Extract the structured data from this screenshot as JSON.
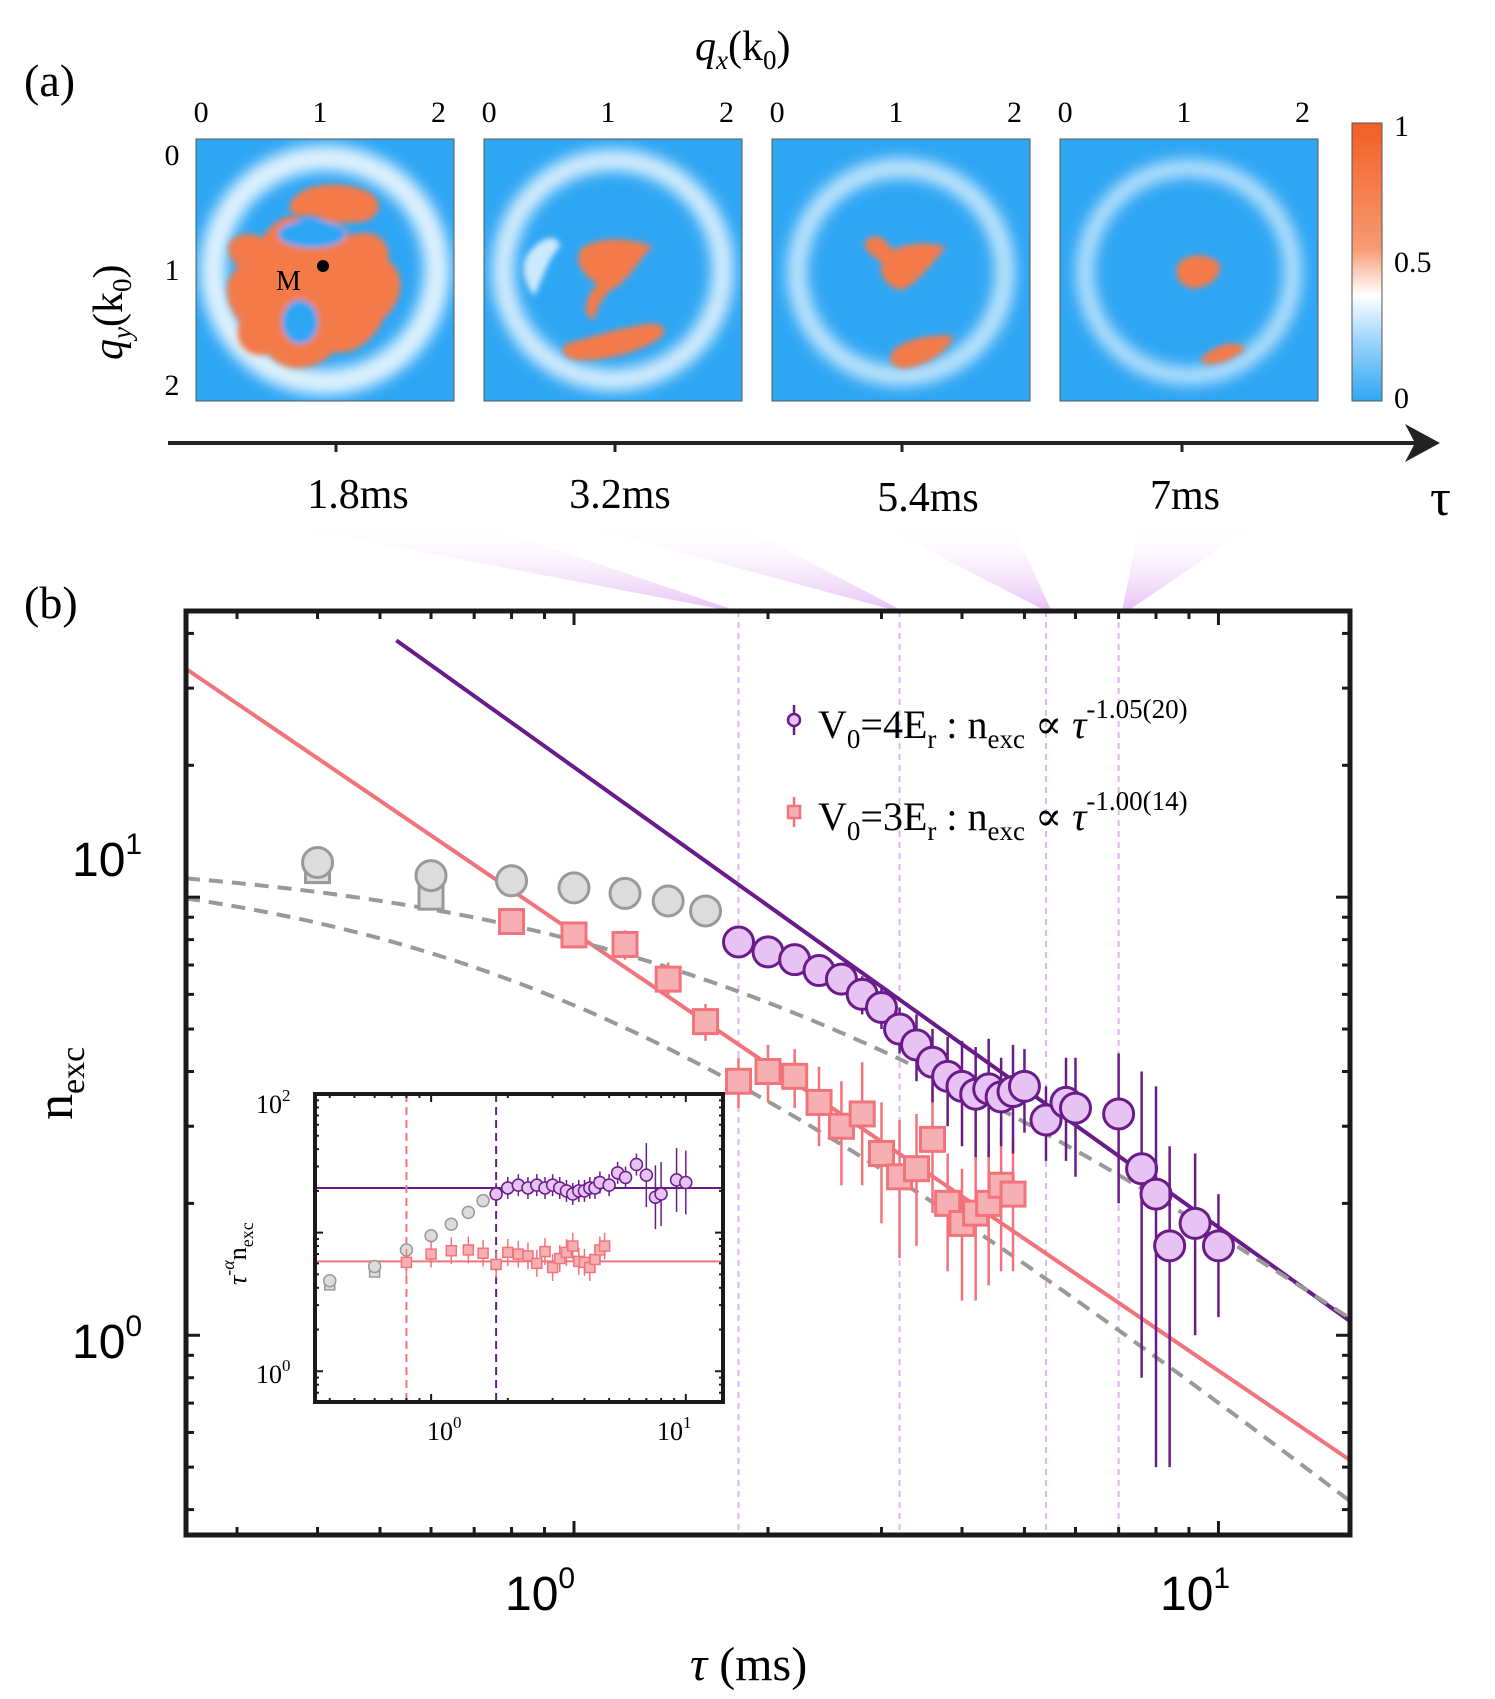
{
  "colors": {
    "purple": "#6a1b8a",
    "purple_fill": "#e6c3f2",
    "salmon": "#f2737a",
    "salmon_fill": "#f6b0b3",
    "gray": "#999999",
    "gray_fill": "#dcdcdc",
    "map_blue": "#2fa6f4",
    "map_orange": "#f47a4a",
    "guide": "#e3b6f0",
    "callout": "#ecc5f5"
  },
  "panel_a": {
    "label": "(a)",
    "x_axis_title_main": "q",
    "x_axis_title_sub": "x",
    "x_axis_title_rest": "(k",
    "x_axis_title_k_sub": "0",
    "x_axis_title_close": ")",
    "y_axis_title_main": "q",
    "y_axis_title_sub": "y",
    "y_axis_title_rest": "(k",
    "y_axis_title_k_sub": "0",
    "y_axis_title_close": ")",
    "x_ticks": [
      "0",
      "1",
      "2"
    ],
    "y_ticks": [
      "0",
      "1",
      "2"
    ],
    "marker_label": "M",
    "colorbar_ticks": [
      "1",
      "0.5",
      "0"
    ],
    "time_axis_symbol": "τ",
    "times": [
      "1.8ms",
      "3.2ms",
      "5.4ms",
      "7ms"
    ],
    "time_values_ms": [
      1.8,
      3.2,
      5.4,
      7.0
    ]
  },
  "chart_data": {
    "label": "(b)",
    "type": "scatter",
    "xscale": "log",
    "yscale": "log",
    "xlim": [
      0.25,
      16
    ],
    "ylim": [
      0.35,
      45
    ],
    "xlabel_symbol": "τ",
    "xlabel_unit": " (ms)",
    "ylabel_main": "n",
    "ylabel_sub": "exc",
    "x_tick_base": "10",
    "x_tick_exps": [
      "0",
      "1"
    ],
    "y_tick_base": "10",
    "y_tick_exps": [
      "0",
      "1"
    ],
    "guide_lines_ms": [
      1.8,
      3.2,
      5.4,
      7.0
    ],
    "legend": [
      {
        "v": "V",
        "v_sub": "0",
        "eq": "=4E",
        "e_sub": "r",
        "mid": " : n",
        "n_sub": "exc",
        "prop": " ∝ ",
        "tau": "τ",
        "exp": "-1.05(20)"
      },
      {
        "v": "V",
        "v_sub": "0",
        "eq": "=3E",
        "e_sub": "r",
        "mid": " : n",
        "n_sub": "exc",
        "prop": " ∝ ",
        "tau": "τ",
        "exp": "-1.00(14)"
      }
    ],
    "series": [
      {
        "name": "V0=4Er",
        "marker": "circle",
        "fit": {
          "A": 19.8,
          "alpha": -1.05,
          "x_start": 0.53,
          "x_end": 16
        },
        "gray_x": [
          0.4,
          0.6,
          0.8,
          1.0,
          1.2,
          1.4,
          1.6
        ],
        "gray_y": [
          12.0,
          11.2,
          10.9,
          10.5,
          10.2,
          9.8,
          9.3
        ],
        "gray_fit": "dashed",
        "points": [
          {
            "x": 1.8,
            "y": 7.9,
            "e": 0.4
          },
          {
            "x": 2.0,
            "y": 7.5,
            "e": 0.4
          },
          {
            "x": 2.2,
            "y": 7.2,
            "e": 0.4
          },
          {
            "x": 2.4,
            "y": 6.8,
            "e": 0.5
          },
          {
            "x": 2.6,
            "y": 6.5,
            "e": 0.5
          },
          {
            "x": 2.8,
            "y": 6.0,
            "e": 0.6
          },
          {
            "x": 3.0,
            "y": 5.6,
            "e": 0.6
          },
          {
            "x": 3.2,
            "y": 5.0,
            "e": 0.6
          },
          {
            "x": 3.4,
            "y": 4.6,
            "e": 0.8
          },
          {
            "x": 3.6,
            "y": 4.2,
            "e": 0.8
          },
          {
            "x": 3.8,
            "y": 3.9,
            "e": 0.9
          },
          {
            "x": 4.0,
            "y": 3.7,
            "e": 1.0
          },
          {
            "x": 4.2,
            "y": 3.55,
            "e": 1.0
          },
          {
            "x": 4.4,
            "y": 3.65,
            "e": 1.1
          },
          {
            "x": 4.6,
            "y": 3.5,
            "e": 0.8
          },
          {
            "x": 4.8,
            "y": 3.6,
            "e": 1.0
          },
          {
            "x": 5.0,
            "y": 3.7,
            "e": 0.8
          },
          {
            "x": 5.4,
            "y": 3.1,
            "e": 0.6
          },
          {
            "x": 5.8,
            "y": 3.4,
            "e": 0.9
          },
          {
            "x": 6.0,
            "y": 3.3,
            "e": 1.0
          },
          {
            "x": 7.0,
            "y": 3.2,
            "e": 1.2
          },
          {
            "x": 7.6,
            "y": 2.4,
            "e": 1.6
          },
          {
            "x": 8.0,
            "y": 2.1,
            "e": 1.6
          },
          {
            "x": 8.4,
            "y": 1.6,
            "e": 1.1
          },
          {
            "x": 9.2,
            "y": 1.8,
            "e": 0.8
          },
          {
            "x": 10.0,
            "y": 1.6,
            "e": 0.5
          }
        ]
      },
      {
        "name": "V0=3Er",
        "marker": "square",
        "fit": {
          "A": 8.3,
          "alpha": -1.0,
          "x_start": 0.25,
          "x_end": 16
        },
        "gray_x": [
          0.4,
          0.6
        ],
        "gray_y": [
          11.5,
          10.0
        ],
        "gray_fit": "dashed",
        "points": [
          {
            "x": 0.8,
            "y": 8.8,
            "e": 0.5
          },
          {
            "x": 1.0,
            "y": 8.2,
            "e": 0.5
          },
          {
            "x": 1.2,
            "y": 7.8,
            "e": 0.6
          },
          {
            "x": 1.4,
            "y": 6.5,
            "e": 0.6
          },
          {
            "x": 1.6,
            "y": 5.2,
            "e": 0.5
          },
          {
            "x": 1.8,
            "y": 3.8,
            "e": 0.5
          },
          {
            "x": 2.0,
            "y": 4.0,
            "e": 0.6
          },
          {
            "x": 2.2,
            "y": 3.9,
            "e": 0.6
          },
          {
            "x": 2.4,
            "y": 3.4,
            "e": 0.7
          },
          {
            "x": 2.6,
            "y": 3.0,
            "e": 0.8
          },
          {
            "x": 2.8,
            "y": 3.2,
            "e": 1.0
          },
          {
            "x": 3.0,
            "y": 2.6,
            "e": 0.8
          },
          {
            "x": 3.2,
            "y": 2.3,
            "e": 0.8
          },
          {
            "x": 3.4,
            "y": 2.4,
            "e": 0.8
          },
          {
            "x": 3.6,
            "y": 2.8,
            "e": 0.9
          },
          {
            "x": 3.8,
            "y": 2.0,
            "e": 0.6
          },
          {
            "x": 4.0,
            "y": 1.8,
            "e": 0.6
          },
          {
            "x": 4.2,
            "y": 1.9,
            "e": 0.7
          },
          {
            "x": 4.4,
            "y": 2.0,
            "e": 0.7
          },
          {
            "x": 4.6,
            "y": 2.2,
            "e": 0.8
          },
          {
            "x": 4.8,
            "y": 2.1,
            "e": 0.7
          }
        ]
      }
    ],
    "inset": {
      "ylabel_tau": "τ",
      "ylabel_exp": "-α",
      "ylabel_main": "n",
      "ylabel_sub": "exc",
      "x_tick_base": "10",
      "x_tick_exps": [
        "0",
        "1"
      ],
      "y_tick_base": "10",
      "y_tick_exps": [
        "0",
        "2"
      ],
      "xlim": [
        0.35,
        14
      ],
      "ylim": [
        0.6,
        100
      ],
      "hline_purple": 21,
      "hline_salmon": 6.2,
      "vline_salmon": 0.8,
      "vline_purple": 1.8,
      "gray_points": [
        [
          0.4,
          4.5
        ],
        [
          0.6,
          5.7
        ],
        [
          0.8,
          7.5
        ],
        [
          1.0,
          9.5
        ],
        [
          1.2,
          11.5
        ],
        [
          1.4,
          14
        ],
        [
          1.6,
          17
        ]
      ],
      "gray_squares": [
        [
          0.4,
          4.2
        ],
        [
          0.6,
          5.2
        ]
      ],
      "purple_points": [
        [
          1.8,
          19
        ],
        [
          2.0,
          21
        ],
        [
          2.2,
          22
        ],
        [
          2.4,
          21
        ],
        [
          2.6,
          22
        ],
        [
          2.8,
          21
        ],
        [
          3.0,
          22
        ],
        [
          3.2,
          21
        ],
        [
          3.4,
          20
        ],
        [
          3.6,
          19
        ],
        [
          3.8,
          20
        ],
        [
          4.0,
          20
        ],
        [
          4.2,
          21
        ],
        [
          4.4,
          21
        ],
        [
          4.6,
          23
        ],
        [
          5.0,
          22
        ],
        [
          5.4,
          27
        ],
        [
          5.8,
          25
        ],
        [
          6.4,
          31
        ],
        [
          7.0,
          26
        ],
        [
          7.6,
          18
        ],
        [
          8.0,
          19
        ],
        [
          9.2,
          24
        ],
        [
          10.0,
          23
        ]
      ],
      "salmon_points": [
        [
          0.8,
          6.1
        ],
        [
          1.0,
          7.0
        ],
        [
          1.2,
          7.4
        ],
        [
          1.4,
          7.5
        ],
        [
          1.6,
          7.1
        ],
        [
          1.8,
          5.9
        ],
        [
          2.0,
          7.2
        ],
        [
          2.2,
          7.0
        ],
        [
          2.4,
          6.8
        ],
        [
          2.6,
          6.0
        ],
        [
          2.8,
          7.3
        ],
        [
          3.0,
          5.6
        ],
        [
          3.2,
          6.5
        ],
        [
          3.4,
          7.2
        ],
        [
          3.6,
          8.0
        ],
        [
          3.8,
          6.2
        ],
        [
          4.0,
          6.1
        ],
        [
          4.2,
          5.6
        ],
        [
          4.4,
          6.4
        ],
        [
          4.6,
          7.5
        ],
        [
          4.8,
          8.0
        ]
      ]
    }
  }
}
